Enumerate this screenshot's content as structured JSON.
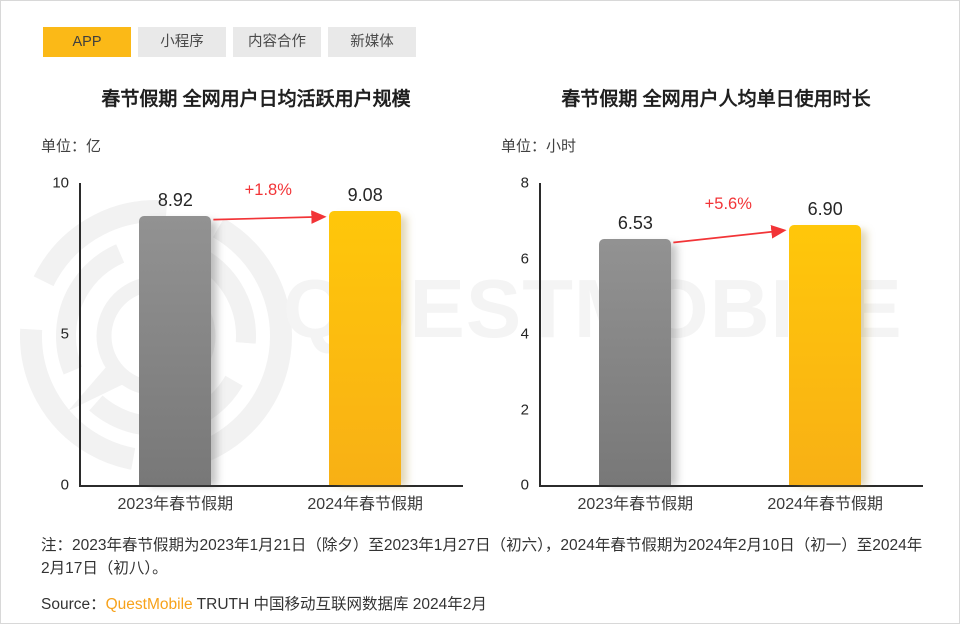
{
  "tabs": [
    {
      "label": "APP",
      "active": true
    },
    {
      "label": "小程序",
      "active": false
    },
    {
      "label": "内容合作",
      "active": false
    },
    {
      "label": "新媒体",
      "active": false
    }
  ],
  "watermark": {
    "text": "QUESTMOBILE"
  },
  "chart_data": [
    {
      "type": "bar",
      "title": "春节假期 全网用户日均活跃用户规模",
      "unit_label": "单位：亿",
      "categories": [
        "2023年春节假期",
        "2024年春节假期"
      ],
      "values": [
        8.92,
        9.08
      ],
      "value_labels": [
        "8.92",
        "9.08"
      ],
      "change_label": "+1.8%",
      "ylim": [
        0,
        10
      ],
      "yticks": [
        0,
        5,
        10
      ],
      "bar_colors": [
        "gray",
        "orange"
      ],
      "grid": false,
      "legend": "none"
    },
    {
      "type": "bar",
      "title": "春节假期 全网用户人均单日使用时长",
      "unit_label": "单位：小时",
      "categories": [
        "2023年春节假期",
        "2024年春节假期"
      ],
      "values": [
        6.53,
        6.9
      ],
      "value_labels": [
        "6.53",
        "6.90"
      ],
      "change_label": "+5.6%",
      "ylim": [
        0,
        8
      ],
      "yticks": [
        0,
        2,
        4,
        6,
        8
      ],
      "bar_colors": [
        "gray",
        "orange"
      ],
      "grid": false,
      "legend": "none"
    }
  ],
  "note": "注：2023年春节假期为2023年1月21日（除夕）至2023年1月27日（初六），2024年春节假期为2024年2月10日（初一）至2024年2月17日（初八）。",
  "source": {
    "prefix": "Source：",
    "brand": "QuestMobile",
    "suffix": " TRUTH 中国移动互联网数据库 2024年2月"
  },
  "colors": {
    "accent_tab": "#fbb917",
    "bar_gray_top": "#929292",
    "bar_gray_bottom": "#787878",
    "bar_orange_top": "#ffc70a",
    "bar_orange_bottom": "#f8b015",
    "change_red": "#f23437",
    "brand_orange": "#f7a21b",
    "watermark_gray": "#f4f4f4"
  }
}
